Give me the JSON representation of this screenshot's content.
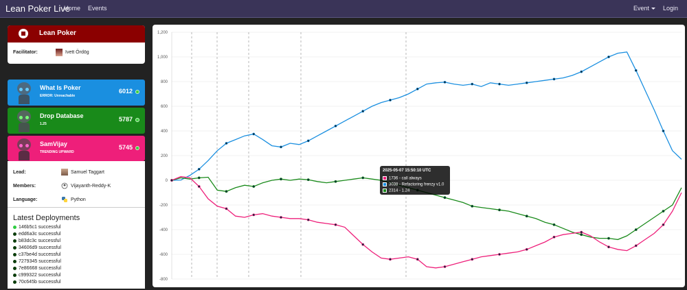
{
  "navbar": {
    "brand": "Lean Poker Live",
    "links": [
      "Home",
      "Events"
    ],
    "event_menu": "Event",
    "login": "Login"
  },
  "team": {
    "name": "Lean Poker",
    "facilitator_label": "Facilitator:",
    "facilitator_name": "Ivett Ördög"
  },
  "players": [
    {
      "name": "What Is Poker",
      "status": "ERROR: Unreachable",
      "score": "6012",
      "color": "#1a8fe0"
    },
    {
      "name": "Drop Database",
      "status": "1.25",
      "score": "5787",
      "color": "#198a1a"
    },
    {
      "name": "SamVijay",
      "status": "TRENDING UPWARD",
      "score": "5745",
      "color": "#ee1f7a"
    }
  ],
  "details": {
    "lead_label": "Lead:",
    "lead": "Samuel Taggart",
    "members_label": "Members:",
    "members": "Vijayanth-Reddy-K",
    "language_label": "Language:",
    "language": "Python"
  },
  "deployments": {
    "title": "Latest Deployments",
    "items": [
      "146b5c1 successful",
      "edd6a3c successful",
      "b83dc3c successful",
      "34606d9 successful",
      "c37be4d successful",
      "7279345 successful",
      "7e86668 successful",
      "c999322 successful",
      "70c645b successful"
    ]
  },
  "chart_data": {
    "type": "line",
    "y_ticks": [
      "1,200",
      "1,000",
      "800",
      "600",
      "400",
      "200",
      "0",
      "-200",
      "-400",
      "-600",
      "-800"
    ],
    "ylim": [
      -800,
      1200
    ],
    "grid": true,
    "series": [
      {
        "color": "#1a8fe0",
        "values": [
          0,
          2,
          40,
          90,
          160,
          240,
          300,
          330,
          360,
          375,
          330,
          280,
          270,
          300,
          290,
          320,
          360,
          400,
          440,
          480,
          520,
          560,
          600,
          630,
          650,
          670,
          700,
          740,
          780,
          790,
          795,
          780,
          770,
          780,
          760,
          790,
          780,
          770,
          780,
          790,
          800,
          810,
          820,
          830,
          850,
          880,
          920,
          960,
          1000,
          1030,
          1040,
          890,
          730,
          570,
          400,
          240,
          170
        ]
      },
      {
        "color": "#198a1a",
        "values": [
          0,
          20,
          10,
          20,
          25,
          -80,
          -90,
          -60,
          -40,
          -50,
          -20,
          0,
          10,
          0,
          10,
          5,
          -10,
          -20,
          -10,
          0,
          10,
          20,
          10,
          0,
          -20,
          -40,
          -60,
          -80,
          -100,
          -120,
          -140,
          -160,
          -180,
          -210,
          -220,
          -230,
          -240,
          -250,
          -270,
          -290,
          -310,
          -340,
          -360,
          -390,
          -420,
          -440,
          -460,
          -470,
          -470,
          -480,
          -450,
          -400,
          -350,
          -300,
          -250,
          -200,
          -60
        ]
      },
      {
        "color": "#ee1f7a",
        "values": [
          0,
          30,
          20,
          -50,
          -150,
          -210,
          -230,
          -290,
          -300,
          -280,
          -270,
          -290,
          -300,
          -310,
          -310,
          -320,
          -340,
          -350,
          -360,
          -380,
          -450,
          -520,
          -580,
          -630,
          -640,
          -630,
          -620,
          -640,
          -700,
          -710,
          -700,
          -680,
          -660,
          -640,
          -620,
          -610,
          -600,
          -590,
          -580,
          -560,
          -530,
          -500,
          -460,
          -440,
          -430,
          -420,
          -450,
          -500,
          -540,
          -560,
          -570,
          -530,
          -480,
          -430,
          -360,
          -250,
          -100
        ]
      }
    ],
    "tooltip": {
      "title": "2025-05-07 15:50:10 UTC",
      "entries": [
        {
          "label": "1736 - call always",
          "color": "#ee1f7a"
        },
        {
          "label": "3038 - Refactoring frenzy v1.0",
          "color": "#1a8fe0"
        },
        {
          "label": "2314 - 1.24",
          "color": "#198a1a"
        }
      ]
    }
  }
}
